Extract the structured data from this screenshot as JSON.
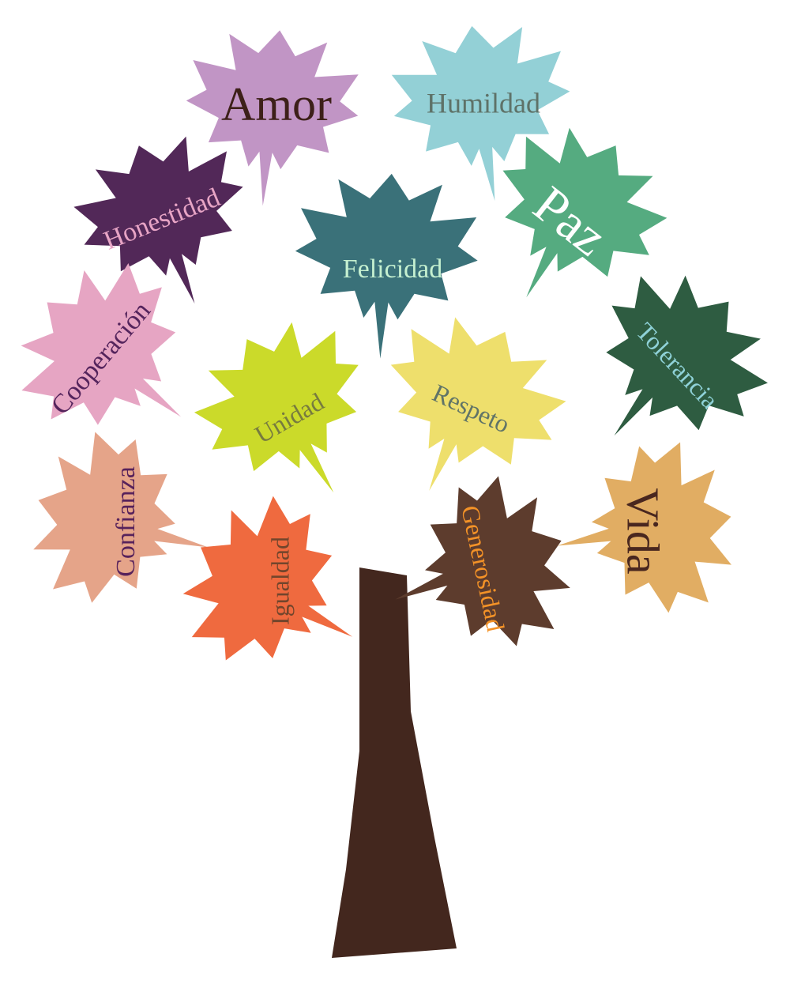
{
  "trunk": {
    "color": "#43271e"
  },
  "leaves": [
    {
      "id": "amor",
      "word": "Amor",
      "leaf_color": "#c195c5",
      "text_color": "#3d2019"
    },
    {
      "id": "humildad",
      "word": "Humildad",
      "leaf_color": "#93d0d6",
      "text_color": "#5e7268"
    },
    {
      "id": "honestidad",
      "word": "Honestidad",
      "leaf_color": "#522858",
      "text_color": "#e7a4c5"
    },
    {
      "id": "felicidad",
      "word": "Felicidad",
      "leaf_color": "#3a7179",
      "text_color": "#c5f0d0"
    },
    {
      "id": "paz",
      "word": "Paz",
      "leaf_color": "#55ab80",
      "text_color": "#ffffff"
    },
    {
      "id": "cooperacion",
      "word": "Cooperación",
      "leaf_color": "#e6a5c3",
      "text_color": "#54245c"
    },
    {
      "id": "tolerancia",
      "word": "Tolerancia",
      "leaf_color": "#2e5c41",
      "text_color": "#8fd2d8"
    },
    {
      "id": "unidad",
      "word": "Unidad",
      "leaf_color": "#cbda2a",
      "text_color": "#777b3f"
    },
    {
      "id": "respeto",
      "word": "Respeto",
      "leaf_color": "#eedf6c",
      "text_color": "#607467"
    },
    {
      "id": "confianza",
      "word": "Confianza",
      "leaf_color": "#e5a489",
      "text_color": "#57225b"
    },
    {
      "id": "igualdad",
      "word": "Igualdad",
      "leaf_color": "#ef6a3f",
      "text_color": "#72452c"
    },
    {
      "id": "generosidad",
      "word": "Generosidad",
      "leaf_color": "#5d3c2d",
      "text_color": "#f39227"
    },
    {
      "id": "vida",
      "word": "Vida",
      "leaf_color": "#e1ad63",
      "text_color": "#49271f"
    }
  ]
}
